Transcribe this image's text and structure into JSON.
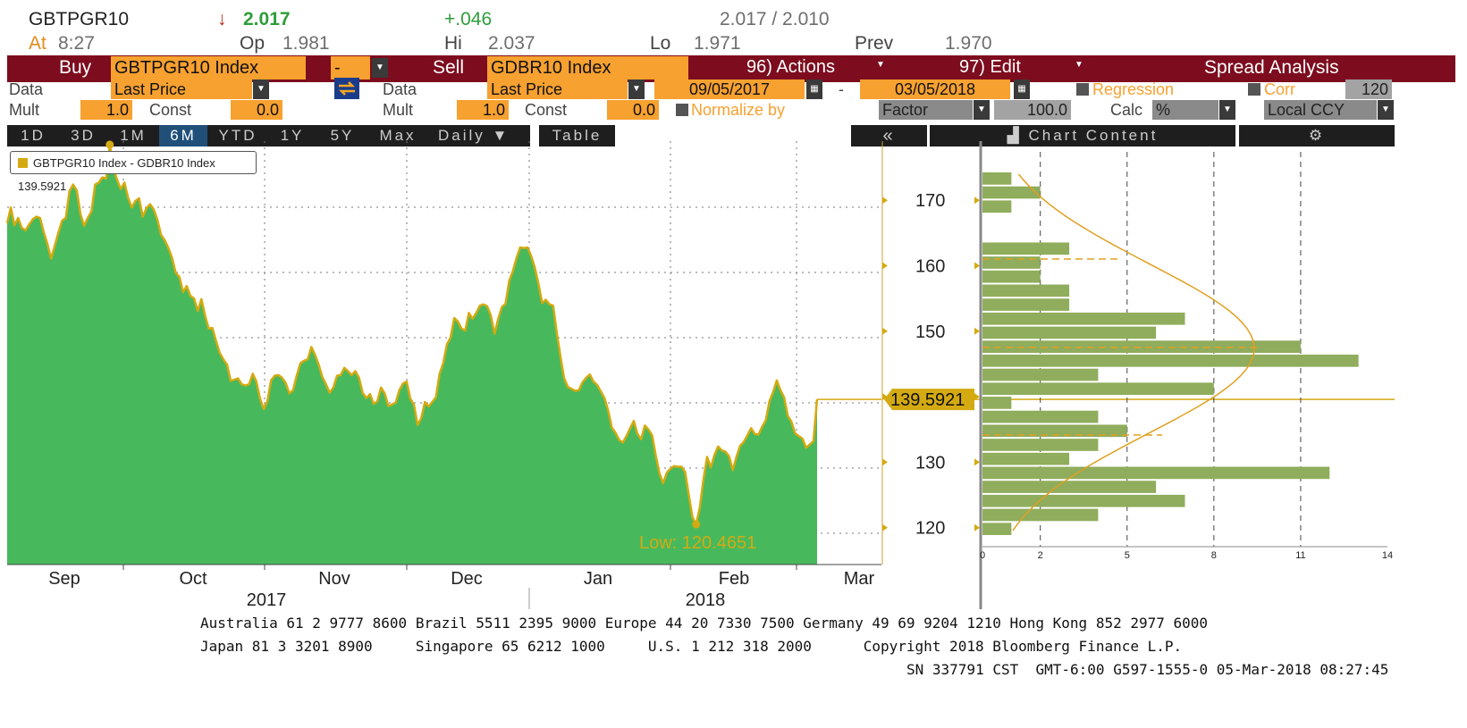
{
  "quote": {
    "ticker": "GBTPGR10",
    "arrow": "↓",
    "last": "2.017",
    "change": "+.046",
    "bid_ask": "2.017 / 2.010",
    "at_label": "At",
    "time": "8:27",
    "op_label": "Op",
    "op": "1.981",
    "hi_label": "Hi",
    "hi": "2.037",
    "lo_label": "Lo",
    "lo": "1.971",
    "prev_label": "Prev",
    "prev": "1.970"
  },
  "toolbar": {
    "buy_label": "Buy",
    "buy_security": "GBTPGR10 Index",
    "operator": "-",
    "sell_label": "Sell",
    "sell_security": "GDBR10 Index",
    "actions": "96) Actions",
    "edit": "97) Edit",
    "title": "Spread Analysis"
  },
  "fields": {
    "data_label": "Data",
    "buy_data": "Last Price",
    "sell_data": "Last Price",
    "start_date": "09/05/2017",
    "date_sep": "-",
    "end_date": "03/05/2018",
    "regression": "Regression",
    "corr": "Corr",
    "corr_value": "120",
    "mult_label": "Mult",
    "buy_mult": "1.0",
    "const_label": "Const",
    "buy_const": "0.0",
    "sell_mult": "1.0",
    "sell_const": "0.0",
    "normalize": "Normalize by",
    "factor": "Factor",
    "factor_value": "100.0",
    "calc_label": "Calc",
    "calc_value": "%",
    "ccy": "Local CCY"
  },
  "ranges": [
    "1D",
    "3D",
    "1M",
    "6M",
    "YTD",
    "1Y",
    "5Y",
    "Max"
  ],
  "selected_range": "6M",
  "frequency": "Daily",
  "table_label": "Table",
  "collapse_label": "«",
  "chart_content_label": "Chart Content",
  "legend_text": "GBTPGR10 Index - GDBR10 Index 139.5921",
  "last_value_label": "139.5921",
  "low_label": "Low: 120.4651",
  "colors": {
    "fill": "#47b95c",
    "line": "#d4aa12",
    "bar": "#8fad5c",
    "maroon": "#7d0c1e",
    "orange": "#f7a130"
  },
  "chart_data": [
    {
      "type": "area",
      "series": [
        {
          "name": "GBTPGR10 Index - GDBR10 Index"
        }
      ],
      "x_ticks": [
        "Sep",
        "Oct",
        "Nov",
        "Dec",
        "Jan",
        "Feb",
        "Mar"
      ],
      "years": [
        "2017",
        "2018"
      ],
      "y_ticks": [
        120,
        130,
        140,
        150,
        160,
        170
      ],
      "ylim": [
        115.3,
        182
      ],
      "last": 139.5921,
      "low": 120.4651,
      "grid": true,
      "values": [
        166.5,
        168.9,
        166.2,
        167.3,
        165.8,
        165.4,
        166.3,
        167.1,
        167.5,
        167.3,
        165.1,
        163.3,
        161.1,
        163.1,
        165.1,
        166.9,
        167.3,
        171.4,
        172.4,
        171.5,
        167.9,
        166.1,
        167.3,
        168.3,
        172.4,
        172.7,
        173.5,
        173.3,
        178.5,
        174.9,
        173.1,
        171.7,
        172.7,
        170.4,
        168.9,
        169.9,
        170.3,
        167.5,
        168.8,
        169.4,
        168.6,
        167.0,
        164.7,
        163.9,
        162.7,
        161.2,
        158.9,
        158.3,
        156.0,
        156.9,
        155.4,
        155.0,
        153.1,
        154.9,
        152.4,
        150.4,
        150.5,
        148.5,
        146.7,
        145.7,
        144.9,
        142.4,
        142.6,
        142.8,
        141.9,
        141.7,
        141.9,
        143.5,
        142.3,
        139.7,
        138.1,
        139.3,
        142.5,
        143.2,
        143.3,
        142.9,
        142.1,
        140.5,
        141.0,
        143.2,
        145.1,
        145.5,
        145.7,
        147.6,
        146.4,
        144.9,
        143.0,
        141.9,
        140.6,
        141.4,
        143.2,
        143.3,
        144.4,
        143.9,
        143.3,
        143.9,
        142.9,
        140.6,
        139.8,
        140.4,
        138.9,
        139.3,
        141.4,
        140.5,
        138.6,
        138.8,
        139.1,
        141.0,
        142.0,
        142.3,
        139.7,
        138.8,
        135.7,
        136.7,
        139.2,
        138.5,
        139.2,
        139.9,
        143.5,
        145.1,
        148.0,
        149.0,
        152.0,
        151.5,
        150.4,
        150.1,
        152.8,
        151.9,
        152.8,
        153.9,
        154.1,
        153.8,
        152.4,
        149.6,
        151.9,
        153.7,
        154.2,
        157.7,
        159.2,
        161.2,
        162.8,
        162.7,
        162.8,
        161.5,
        159.7,
        157.2,
        154.3,
        154.8,
        154.1,
        153.9,
        149.7,
        146.1,
        142.8,
        141.5,
        141.2,
        140.9,
        141.0,
        142.2,
        142.9,
        143.4,
        142.3,
        141.8,
        140.8,
        139.8,
        137.9,
        135.3,
        134.5,
        133.4,
        133.0,
        134.0,
        135.2,
        136.3,
        134.3,
        133.5,
        135.6,
        135.0,
        134.1,
        131.0,
        128.3,
        126.8,
        128.4,
        129.0,
        129.4,
        129.3,
        129.3,
        128.5,
        125.0,
        121.6,
        120.5,
        123.1,
        127.4,
        130.8,
        129.2,
        131.1,
        132.4,
        131.8,
        131.6,
        130.9,
        128.8,
        130.8,
        132.5,
        133.1,
        134.1,
        135.2,
        134.3,
        134.2,
        135.4,
        136.4,
        139.3,
        140.7,
        142.5,
        141.0,
        139.9,
        137.1,
        136.2,
        134.4,
        134.0,
        133.6,
        132.2,
        132.7,
        133.2,
        139.6
      ]
    },
    {
      "type": "bar",
      "orientation": "horizontal",
      "x_ticks": [
        0,
        2,
        5,
        8,
        11,
        14
      ],
      "counts": [
        1,
        2,
        1,
        0,
        0,
        3,
        2,
        2,
        3,
        3,
        7,
        6,
        11,
        13,
        4,
        8,
        1,
        4,
        5,
        4,
        3,
        12,
        6,
        7,
        4,
        1
      ]
    }
  ]
}
